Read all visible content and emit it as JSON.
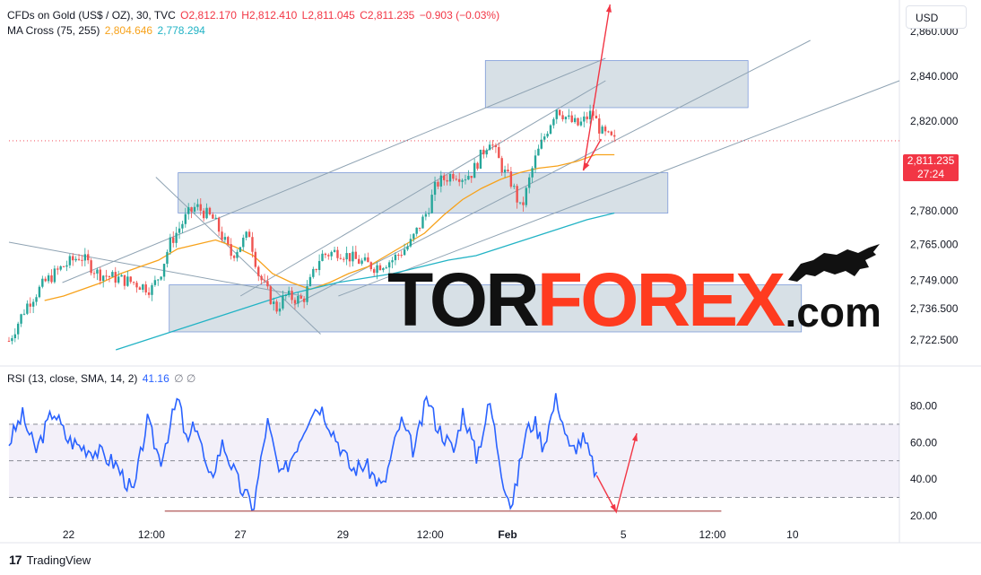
{
  "header": {
    "symbol": "CFDs on Gold (US$ / OZ), 30, TVC",
    "open_label": "O",
    "open": "2,812.170",
    "high_label": "H",
    "high": "2,812.410",
    "low_label": "L",
    "low": "2,811.045",
    "close_label": "C",
    "close": "2,811.235",
    "change": "−0.903 (−0.03%)",
    "ma_title": "MA Cross (75, 255)",
    "ma_fast": "2,804.646",
    "ma_slow": "2,778.294",
    "currency": "USD"
  },
  "last_price": {
    "value": "2,811.235",
    "countdown": "27:24"
  },
  "rsi_legend": {
    "title": "RSI (13, close, SMA, 14, 2)",
    "value": "41.16",
    "extra": "∅ ∅"
  },
  "footer": {
    "brand": "TradingView",
    "logo": "17"
  },
  "watermark": {
    "part1": "TOR",
    "part2": "FOREX",
    "part3": ".com",
    "bull": "bull-icon"
  },
  "colors": {
    "up": "#26a69a",
    "down": "#ef5350",
    "ma_fast": "#f7a21b",
    "ma_slow": "#22b3c5",
    "rsi": "#2962ff",
    "arrow": "#f23645",
    "zone": "#b7c7d1",
    "trend": "#8fa3b3"
  },
  "chart_data": [
    {
      "type": "line",
      "name": "price",
      "ylim": [
        2712,
        2870
      ],
      "price_ticks": [
        "2,860.000",
        "2,840.000",
        "2,820.000",
        "2,800.000",
        "2,780.000",
        "2,765.000",
        "2,749.000",
        "2,736.500",
        "2,722.500"
      ],
      "price_tick_values": [
        2860,
        2840,
        2820,
        2800,
        2780,
        2765,
        2749,
        2736.5,
        2722.5
      ],
      "time_ticks": [
        "22",
        "12:00",
        "27",
        "29",
        "12:00",
        "Feb",
        "5",
        "12:00",
        "10"
      ],
      "time_tick_pos": [
        0.067,
        0.16,
        0.26,
        0.375,
        0.473,
        0.56,
        0.69,
        0.79,
        0.88
      ],
      "close_x": [
        0.0,
        0.02,
        0.04,
        0.06,
        0.08,
        0.1,
        0.12,
        0.14,
        0.16,
        0.17,
        0.18,
        0.2,
        0.21,
        0.23,
        0.25,
        0.27,
        0.28,
        0.3,
        0.31,
        0.33,
        0.35,
        0.37,
        0.39,
        0.41,
        0.43,
        0.45,
        0.47,
        0.48,
        0.5,
        0.51,
        0.52,
        0.54,
        0.555,
        0.565,
        0.575,
        0.59,
        0.6,
        0.615,
        0.63,
        0.64,
        0.655,
        0.665,
        0.68
      ],
      "close_y": [
        2722,
        2738,
        2748,
        2755,
        2760,
        2752,
        2750,
        2748,
        2745,
        2752,
        2765,
        2778,
        2782,
        2776,
        2760,
        2770,
        2752,
        2736,
        2742,
        2740,
        2760,
        2762,
        2758,
        2755,
        2758,
        2765,
        2780,
        2792,
        2797,
        2795,
        2797,
        2812,
        2798,
        2792,
        2780,
        2802,
        2812,
        2826,
        2820,
        2818,
        2824,
        2815,
        2811
      ],
      "ma_fast": [
        2740,
        2742,
        2745,
        2748,
        2752,
        2755,
        2758,
        2763,
        2765,
        2767,
        2764,
        2760,
        2752,
        2748,
        2745,
        2748,
        2752,
        2755,
        2760,
        2765,
        2770,
        2778,
        2785,
        2790,
        2794,
        2797,
        2799,
        2800,
        2802,
        2805,
        2805
      ],
      "ma_slow": [
        2718,
        2722,
        2726,
        2730,
        2734,
        2738,
        2742,
        2745,
        2748,
        2750,
        2752,
        2755,
        2758,
        2760,
        2764,
        2768,
        2772,
        2776,
        2779
      ],
      "zones": [
        {
          "from": 2826,
          "to": 2847,
          "x0": 0.535,
          "x1": 0.83
        },
        {
          "from": 2779,
          "to": 2797,
          "x0": 0.19,
          "x1": 0.74
        },
        {
          "from": 2726,
          "to": 2747,
          "x0": 0.18,
          "x1": 0.89
        }
      ],
      "forecast": [
        [
          0.665,
          2812
        ],
        [
          0.645,
          2798
        ],
        [
          0.675,
          2872
        ]
      ]
    },
    {
      "type": "line",
      "name": "rsi",
      "ylim": [
        15,
        95
      ],
      "rsi_ticks": [
        "80.00",
        "60.00",
        "40.00",
        "20.00"
      ],
      "rsi_tick_values": [
        80,
        60,
        40,
        20
      ],
      "bands": [
        30,
        50,
        70
      ],
      "x": [
        0.0,
        0.015,
        0.03,
        0.05,
        0.065,
        0.08,
        0.1,
        0.12,
        0.14,
        0.155,
        0.17,
        0.19,
        0.2,
        0.21,
        0.225,
        0.24,
        0.26,
        0.275,
        0.29,
        0.305,
        0.32,
        0.34,
        0.35,
        0.37,
        0.385,
        0.4,
        0.42,
        0.44,
        0.455,
        0.47,
        0.48,
        0.5,
        0.51,
        0.525,
        0.54,
        0.555,
        0.565,
        0.58,
        0.59,
        0.6,
        0.615,
        0.63,
        0.645,
        0.66
      ],
      "y": [
        60,
        75,
        55,
        78,
        62,
        58,
        55,
        48,
        32,
        72,
        50,
        85,
        58,
        72,
        38,
        60,
        35,
        25,
        72,
        40,
        55,
        78,
        80,
        60,
        45,
        48,
        35,
        72,
        55,
        85,
        70,
        55,
        78,
        52,
        82,
        40,
        24,
        65,
        72,
        58,
        85,
        55,
        62,
        42
      ],
      "forecast": [
        [
          0.66,
          42
        ],
        [
          0.682,
          22
        ],
        [
          0.705,
          65
        ]
      ],
      "support": 22.5
    }
  ]
}
